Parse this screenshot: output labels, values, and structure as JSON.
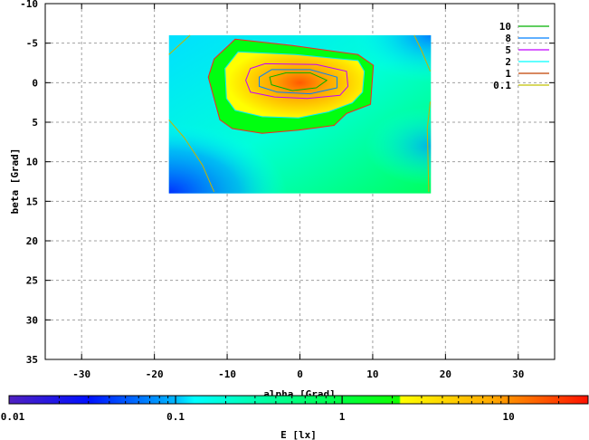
{
  "chart_data": {
    "type": "heatmap",
    "title": "",
    "xlabel": "alpha [Grad]",
    "ylabel": "beta [Grad]",
    "xlim": [
      -35,
      35
    ],
    "ylim": [
      35,
      -10
    ],
    "xticks": [
      -30,
      -20,
      -10,
      0,
      10,
      20,
      30
    ],
    "yticks": [
      -10,
      -5,
      0,
      5,
      10,
      15,
      20,
      25,
      30,
      35
    ],
    "grid": true,
    "data_extent": {
      "alpha": [
        -18,
        18
      ],
      "beta": [
        -6,
        14
      ]
    },
    "colorbar": {
      "label": "E [lx]",
      "scale": "log",
      "range": [
        0.01,
        30
      ],
      "tick_labels": [
        "0.01",
        "0.1",
        "1",
        "10"
      ],
      "tick_values": [
        0.01,
        0.1,
        1,
        10
      ],
      "stops": [
        {
          "value": 0.01,
          "color": "#5020c0"
        },
        {
          "value": 0.03,
          "color": "#0010ff"
        },
        {
          "value": 0.1,
          "color": "#00b8ff"
        },
        {
          "value": 0.13,
          "color": "#00ffff"
        },
        {
          "value": 0.25,
          "color": "#00ffc0"
        },
        {
          "value": 1.0,
          "color": "#00ff40"
        },
        {
          "value": 2.2,
          "color": "#10ff00"
        },
        {
          "value": 2.25,
          "color": "#ffff00"
        },
        {
          "value": 8,
          "color": "#ffa800"
        },
        {
          "value": 30,
          "color": "#ff1000"
        }
      ]
    },
    "legend": {
      "placement": "top-right",
      "entries": [
        {
          "label": "10",
          "color": "#00b000"
        },
        {
          "label": "8",
          "color": "#0080ff"
        },
        {
          "label": "5",
          "color": "#c000ff"
        },
        {
          "label": "2",
          "color": "#00ffff"
        },
        {
          "label": "1",
          "color": "#c04000"
        },
        {
          "label": "0.1",
          "color": "#c0c000"
        }
      ]
    },
    "peak": {
      "alpha": 0,
      "beta": 0,
      "value": 15
    },
    "contours": [
      {
        "level": 1,
        "color": "#ff2020",
        "points": [
          [
            -8.9,
            -5.5
          ],
          [
            -1.05,
            -4.7
          ],
          [
            8.0,
            -3.55
          ],
          [
            10.1,
            -2.2
          ],
          [
            9.7,
            2.75
          ],
          [
            6.4,
            3.9
          ],
          [
            4.7,
            5.4
          ],
          [
            -0.2,
            6.0
          ],
          [
            -5.2,
            6.4
          ],
          [
            -9.3,
            5.8
          ],
          [
            -11.0,
            4.7
          ],
          [
            -12.6,
            -0.7
          ],
          [
            -11.8,
            -3.0
          ]
        ]
      },
      {
        "level": 2,
        "color": "#00e8ff",
        "points": [
          [
            -8.5,
            -3.9
          ],
          [
            -0.6,
            -3.55
          ],
          [
            8.0,
            -2.8
          ],
          [
            8.85,
            -1.45
          ],
          [
            8.6,
            1.2
          ],
          [
            7.2,
            2.55
          ],
          [
            3.9,
            3.7
          ],
          [
            -0.2,
            4.45
          ],
          [
            -5.2,
            4.3
          ],
          [
            -8.9,
            3.5
          ],
          [
            -10.1,
            2.0
          ],
          [
            -10.3,
            -1.8
          ]
        ]
      },
      {
        "level": 5,
        "color": "#c000ff",
        "points": [
          [
            -6.8,
            -1.8
          ],
          [
            -4.8,
            -2.4
          ],
          [
            2.25,
            -2.3
          ],
          [
            6.4,
            -1.45
          ],
          [
            6.6,
            0.46
          ],
          [
            5.5,
            1.6
          ],
          [
            1.0,
            2.0
          ],
          [
            -3.5,
            1.8
          ],
          [
            -6.8,
            1.2
          ],
          [
            -7.45,
            -0.3
          ]
        ]
      },
      {
        "level": 8,
        "color": "#0080ff",
        "points": [
          [
            -5.6,
            -0.7
          ],
          [
            -3.9,
            -1.65
          ],
          [
            1.4,
            -1.65
          ],
          [
            5.1,
            -0.7
          ],
          [
            5.1,
            0.65
          ],
          [
            1.4,
            1.4
          ],
          [
            -3.1,
            1.2
          ],
          [
            -5.6,
            0.46
          ]
        ]
      },
      {
        "level": 10,
        "color": "#00b000",
        "points": [
          [
            -4.15,
            -0.7
          ],
          [
            -1.9,
            -1.25
          ],
          [
            1.4,
            -1.25
          ],
          [
            3.7,
            -0.3
          ],
          [
            2.25,
            0.65
          ],
          [
            -1.05,
            1.0
          ],
          [
            -3.9,
            0.26
          ]
        ]
      },
      {
        "level": 0.1,
        "color": "#c8b400",
        "open": true,
        "points": [
          [
            -18,
            -3.55
          ],
          [
            -15.1,
            -6
          ]
        ]
      },
      {
        "level": 0.1,
        "color": "#c8b400",
        "open": true,
        "points": [
          [
            -18,
            4.7
          ],
          [
            -15.9,
            6.95
          ],
          [
            -13.4,
            10.4
          ],
          [
            -11.8,
            13.8
          ]
        ]
      },
      {
        "level": 0.1,
        "color": "#c8b400",
        "open": true,
        "points": [
          [
            15.7,
            -6
          ],
          [
            16.7,
            -4.1
          ],
          [
            17.9,
            -1.45
          ]
        ]
      },
      {
        "level": 0.1,
        "color": "#c8b400",
        "open": true,
        "points": [
          [
            17.9,
            2.4
          ],
          [
            17.5,
            5.8
          ],
          [
            17.7,
            13.8
          ]
        ]
      }
    ]
  }
}
